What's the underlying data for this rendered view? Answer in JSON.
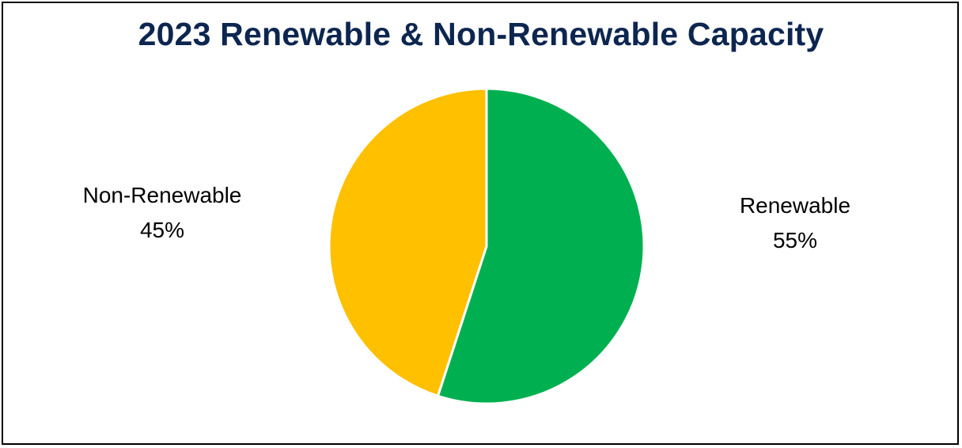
{
  "chart_data": {
    "type": "pie",
    "title": "2023 Renewable & Non-Renewable Capacity",
    "slices": [
      {
        "label": "Renewable",
        "value": 55,
        "value_label": "55%",
        "color": "#00b050"
      },
      {
        "label": "Non-Renewable",
        "value": 45,
        "value_label": "45%",
        "color": "#ffc000"
      }
    ]
  }
}
